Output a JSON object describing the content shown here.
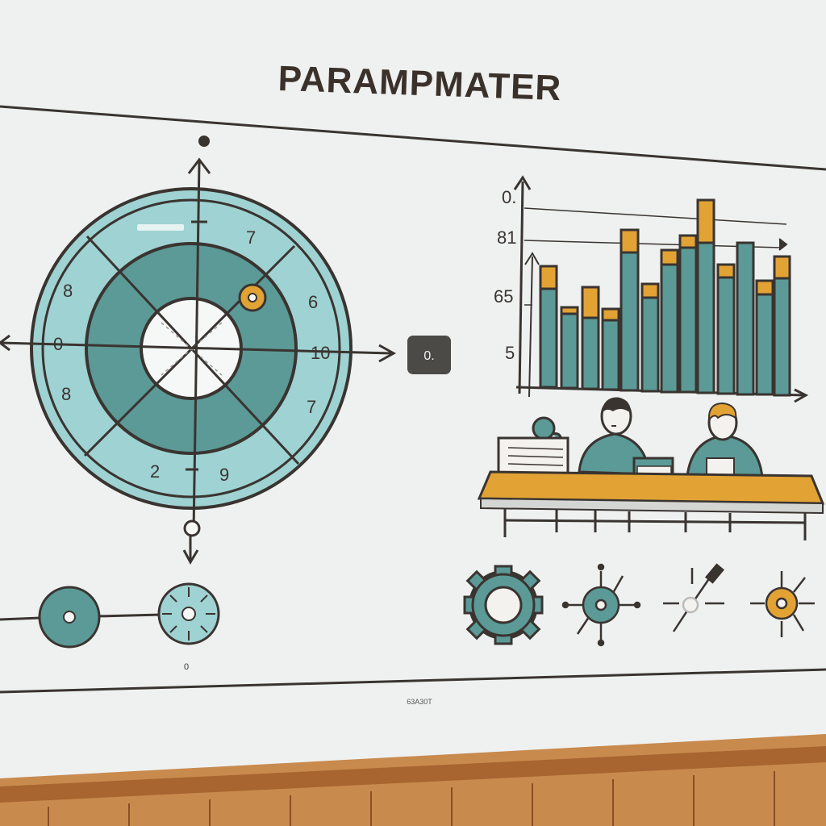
{
  "slide": {
    "title": "PARAMPMATER",
    "footer_caption": "63A30T",
    "bottom_left_label": "0"
  },
  "dial": {
    "numbers": {
      "top_right": "7",
      "right_upper": "6",
      "left_upper": "8",
      "left_mid": "0",
      "right_mid": "10",
      "left_lower": "8",
      "right_lower": "7",
      "bottom_left": "2",
      "bottom_right": "9"
    }
  },
  "badge": {
    "text": "0."
  },
  "bar_chart": {
    "y_tick_labels": [
      "0.",
      "81",
      "65",
      "5"
    ]
  },
  "colors": {
    "teal": "#5b9a96",
    "teal_light": "#9fd2d2",
    "orange": "#e2a334",
    "outline": "#3a3431",
    "screen": "#f2f4f3",
    "wood": "#c9823f"
  },
  "icons": [
    "gear-icon",
    "node-icon",
    "tool-icon",
    "target-icon"
  ]
}
